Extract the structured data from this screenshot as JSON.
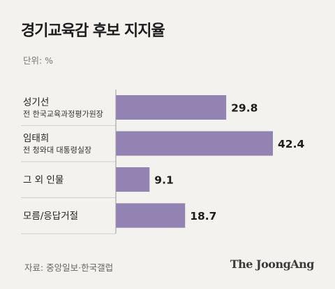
{
  "title": "경기교육감 후보 지지율",
  "unit_label": "단위: %",
  "source": "자료: 중앙일보·한국갤럽",
  "brand": "The JoongAng",
  "colors": {
    "bar": "#9383b3",
    "axis": "#999999",
    "divider": "#cfcfcf",
    "background": "#f3f2ee"
  },
  "chart_data": {
    "type": "bar",
    "orientation": "horizontal",
    "categories": [
      {
        "name": "성기선",
        "sub": "전 한국교육과정평가원장"
      },
      {
        "name": "임태희",
        "sub": "전 청와대 대통령실장"
      },
      {
        "name": "그 외 인물",
        "sub": ""
      },
      {
        "name": "모름/응답거절",
        "sub": ""
      }
    ],
    "values": [
      29.8,
      42.4,
      9.1,
      18.7
    ],
    "value_labels": [
      "29.8",
      "42.4",
      "9.1",
      "18.7"
    ],
    "xlim": [
      0,
      45
    ],
    "grid": false,
    "legend": "none"
  }
}
